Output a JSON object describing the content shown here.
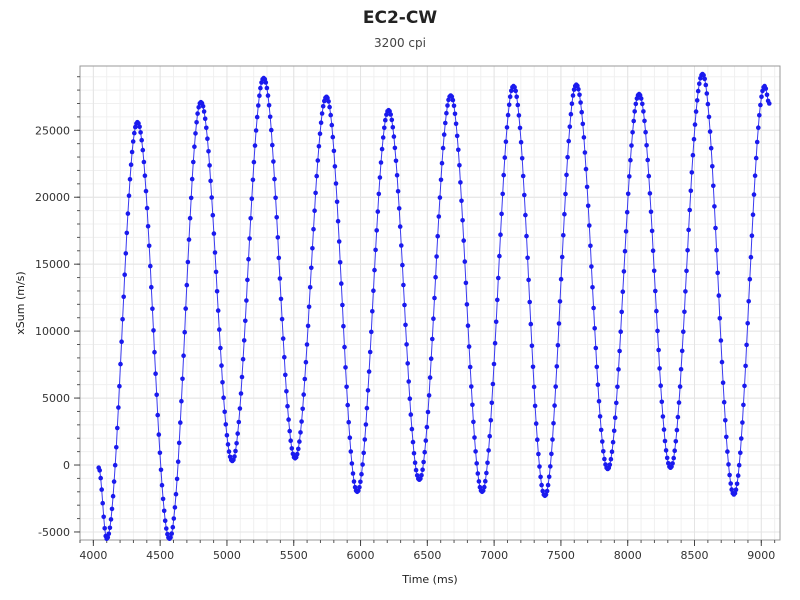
{
  "chart_data": {
    "type": "scatter",
    "title": "EC2-CW",
    "subtitle": "3200 cpi",
    "xlabel": "Time (ms)",
    "ylabel": "xSum (m/s)",
    "xlim": [
      3900,
      9140
    ],
    "ylim": [
      -5600,
      29800
    ],
    "x_ticks": [
      4000,
      4500,
      5000,
      5500,
      6000,
      6500,
      7000,
      7500,
      8000,
      8500,
      9000
    ],
    "y_ticks": [
      -5000,
      0,
      5000,
      10000,
      15000,
      20000,
      25000
    ],
    "grid": true,
    "legend": "none",
    "colors": {
      "points": "#1a1aee",
      "line": "#3a3af0",
      "grid": "#e4e4e4",
      "frame": "#999999"
    },
    "series": [
      {
        "style": "points-with-line",
        "extrema": [
          {
            "x": 4040,
            "y": -200
          },
          {
            "x": 4100,
            "y": -5500
          },
          {
            "x": 4330,
            "y": 25600
          },
          {
            "x": 4570,
            "y": -5500
          },
          {
            "x": 4805,
            "y": 27100
          },
          {
            "x": 5040,
            "y": 300
          },
          {
            "x": 5275,
            "y": 28900
          },
          {
            "x": 5510,
            "y": 500
          },
          {
            "x": 5745,
            "y": 27500
          },
          {
            "x": 5975,
            "y": -2000
          },
          {
            "x": 6210,
            "y": 26500
          },
          {
            "x": 6440,
            "y": -1100
          },
          {
            "x": 6675,
            "y": 27600
          },
          {
            "x": 6910,
            "y": -2000
          },
          {
            "x": 7145,
            "y": 28300
          },
          {
            "x": 7380,
            "y": -2300
          },
          {
            "x": 7615,
            "y": 28400
          },
          {
            "x": 7850,
            "y": -300
          },
          {
            "x": 8085,
            "y": 27700
          },
          {
            "x": 8320,
            "y": -200
          },
          {
            "x": 8560,
            "y": 29200
          },
          {
            "x": 8795,
            "y": -2200
          },
          {
            "x": 9025,
            "y": 28300
          },
          {
            "x": 9060,
            "y": 27000
          }
        ],
        "sample_interval_ms": 8
      }
    ]
  }
}
